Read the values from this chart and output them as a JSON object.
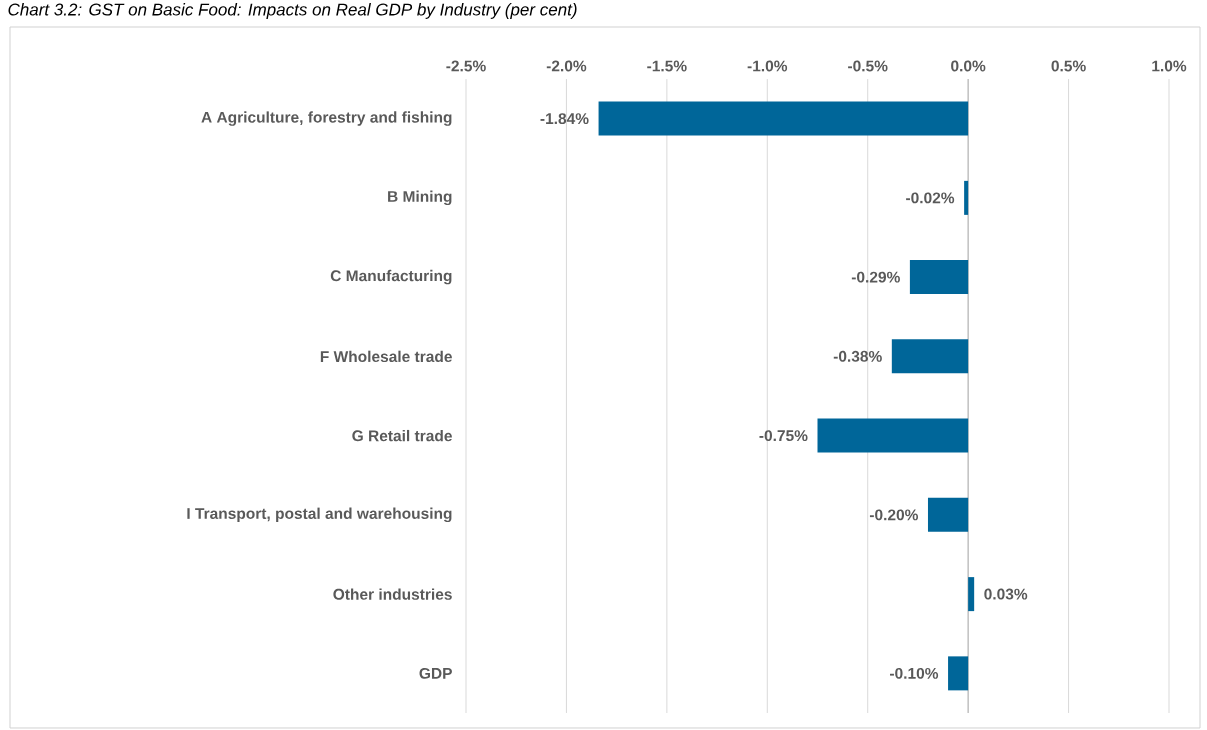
{
  "chart_data": {
    "type": "bar",
    "orientation": "horizontal",
    "title": "Chart 3.2: GST on Basic Food: Impacts on Real GDP by Industry (per cent)",
    "categories": [
      "A Agriculture, forestry and fishing",
      "B Mining",
      "C Manufacturing",
      "F Wholesale trade",
      "G Retail trade",
      "I Transport, postal and warehousing",
      "Other industries",
      "GDP"
    ],
    "values": [
      -1.84,
      -0.02,
      -0.29,
      -0.38,
      -0.75,
      -0.2,
      0.03,
      -0.1
    ],
    "value_labels": [
      "-1.84%",
      "-0.02%",
      "-0.29%",
      "-0.38%",
      "-0.75%",
      "-0.20%",
      "0.03%",
      "-0.10%"
    ],
    "color": "#006699",
    "xlim": [
      -2.5,
      1.0
    ],
    "xticks": [
      {
        "value": -2.5,
        "label": "-2.5%"
      },
      {
        "value": -2.0,
        "label": "-2.0%"
      },
      {
        "value": -1.5,
        "label": "-1.5%"
      },
      {
        "value": -1.0,
        "label": "-1.0%"
      },
      {
        "value": -0.5,
        "label": "-0.5%"
      },
      {
        "value": 0.0,
        "label": "0.0%"
      },
      {
        "value": 0.5,
        "label": "0.5%"
      },
      {
        "value": 1.0,
        "label": "1.0%"
      }
    ],
    "grid": "x"
  }
}
